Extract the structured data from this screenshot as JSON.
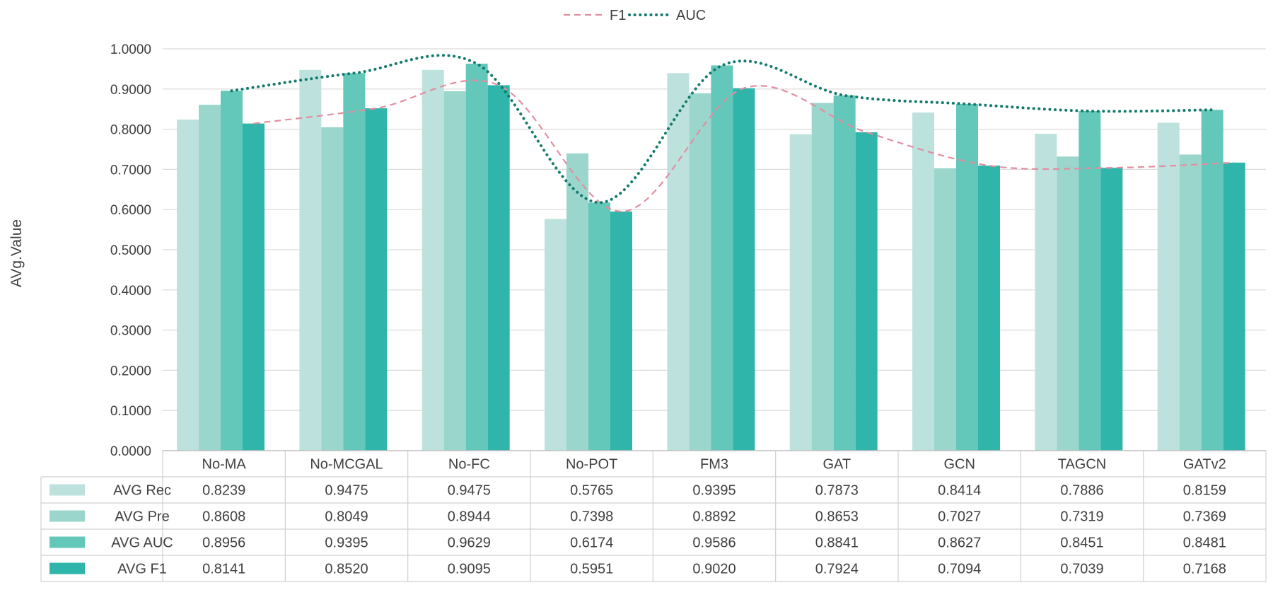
{
  "chart_data": {
    "type": "bar",
    "title": "",
    "xlabel": "",
    "ylabel": "AVg.Value",
    "ylim": [
      0,
      1
    ],
    "ytick_step": 0.1,
    "yticks": [
      "0.0000",
      "0.1000",
      "0.2000",
      "0.3000",
      "0.4000",
      "0.5000",
      "0.6000",
      "0.7000",
      "0.8000",
      "0.9000",
      "1.0000"
    ],
    "grid": true,
    "categories": [
      "No-MA",
      "No-MCGAL",
      "No-FC",
      "No-POT",
      "FM3",
      "GAT",
      "GCN",
      "TAGCN",
      "GATv2"
    ],
    "series": [
      {
        "name": "AVG Rec",
        "color": "#bde2dd",
        "values": [
          0.8239,
          0.9475,
          0.9475,
          0.5765,
          0.9395,
          0.7873,
          0.8414,
          0.7886,
          0.8159
        ],
        "labels": [
          "0.8239",
          "0.9475",
          "0.9475",
          "0.5765",
          "0.9395",
          "0.7873",
          "0.8414",
          "0.7886",
          "0.8159"
        ]
      },
      {
        "name": "AVG Pre",
        "color": "#9bd6cc",
        "values": [
          0.8608,
          0.8049,
          0.8944,
          0.7398,
          0.8892,
          0.8653,
          0.7027,
          0.7319,
          0.7369
        ],
        "labels": [
          "0.8608",
          "0.8049",
          "0.8944",
          "0.7398",
          "0.8892",
          "0.8653",
          "0.7027",
          "0.7319",
          "0.7369"
        ]
      },
      {
        "name": "AVG AUC",
        "color": "#63c7ba",
        "values": [
          0.8956,
          0.9395,
          0.9629,
          0.6174,
          0.9586,
          0.8841,
          0.8627,
          0.8451,
          0.8481
        ],
        "labels": [
          "0.8956",
          "0.9395",
          "0.9629",
          "0.6174",
          "0.9586",
          "0.8841",
          "0.8627",
          "0.8451",
          "0.8481"
        ]
      },
      {
        "name": "AVG F1",
        "color": "#2fb5aa",
        "values": [
          0.8141,
          0.852,
          0.9095,
          0.5951,
          0.902,
          0.7924,
          0.7094,
          0.7039,
          0.7168
        ],
        "labels": [
          "0.8141",
          "0.8520",
          "0.9095",
          "0.5951",
          "0.9020",
          "0.7924",
          "0.7094",
          "0.7039",
          "0.7168"
        ]
      }
    ],
    "trendlines": [
      {
        "name": "F1",
        "series": "AVG F1",
        "style": "dashed",
        "color": "#e18fa0"
      },
      {
        "name": "AUC",
        "series": "AVG AUC",
        "style": "dotted",
        "color": "#127a6c"
      }
    ],
    "legend": {
      "position": "top-center",
      "entries": [
        "F1",
        "AUC"
      ]
    }
  }
}
